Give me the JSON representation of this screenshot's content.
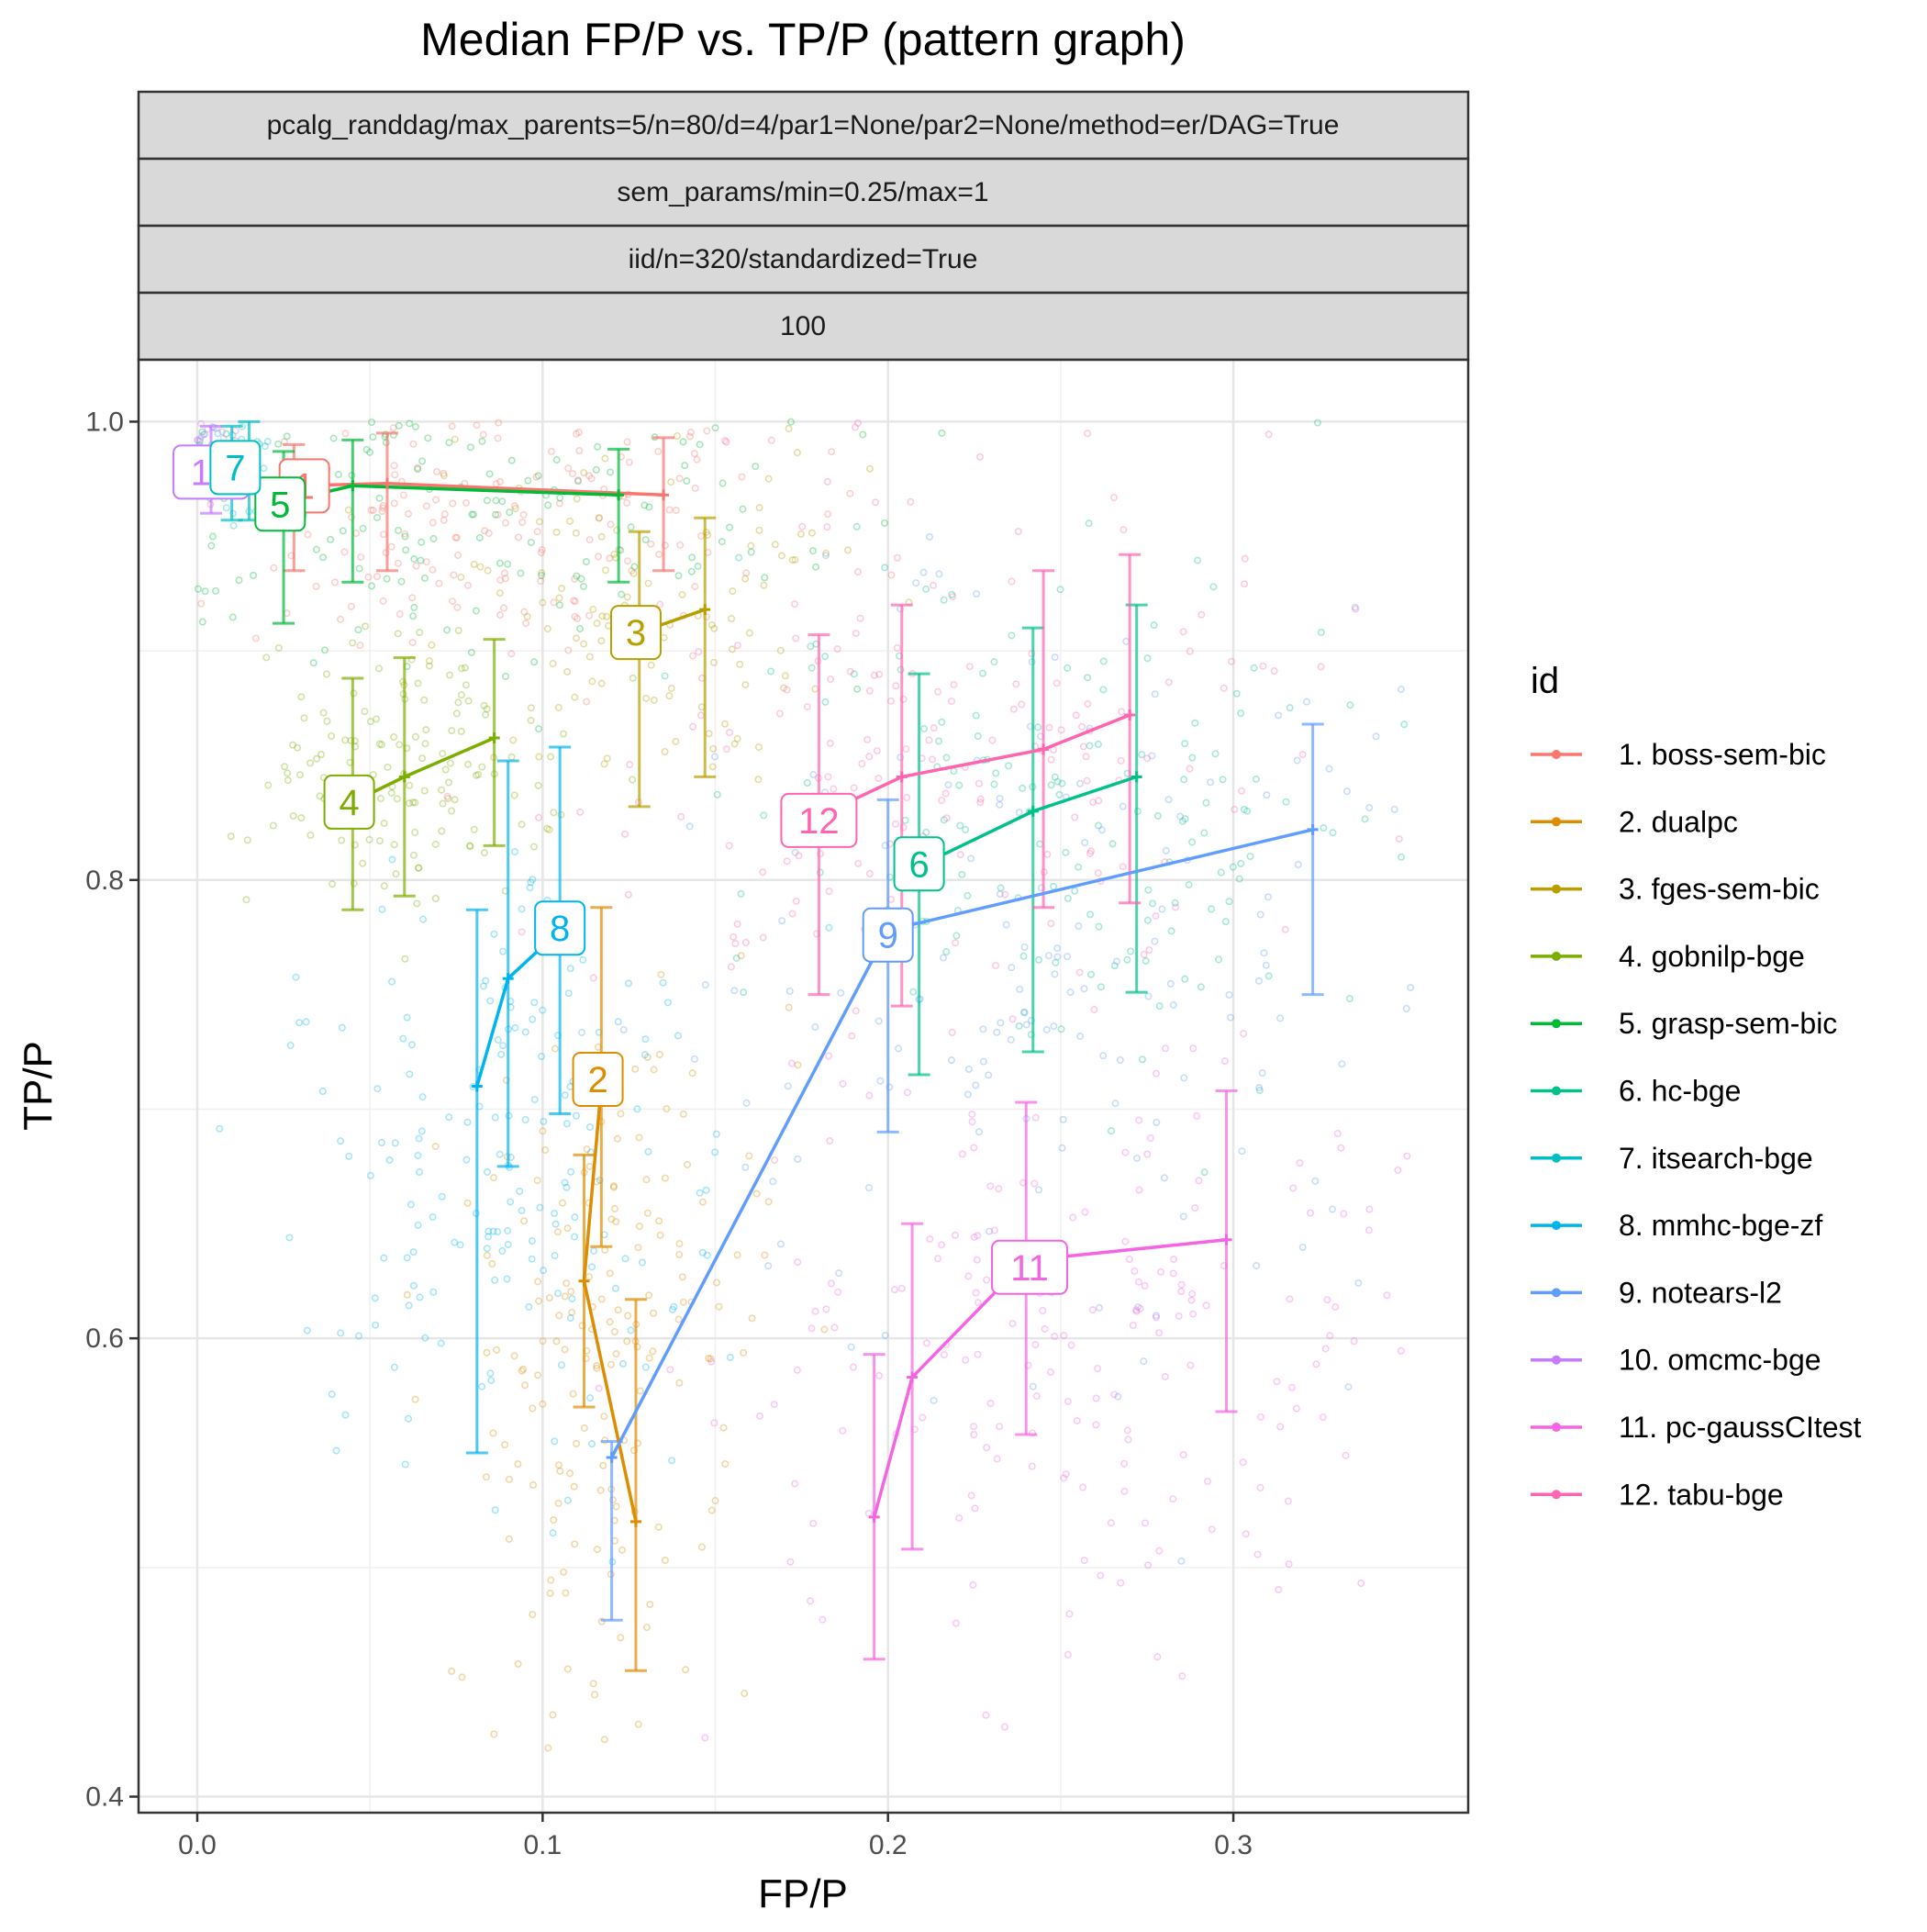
{
  "chart_data": {
    "type": "scatter",
    "title": "Median FP/P vs. TP/P (pattern graph)",
    "facet_strips": [
      "pcalg_randdag/max_parents=5/n=80/d=4/par1=None/par2=None/method=er/DAG=True",
      "sem_params/min=0.25/max=1",
      "iid/n=320/standardized=True",
      "100"
    ],
    "xlabel": "FP/P",
    "ylabel": "TP/P",
    "xlim": [
      -0.017,
      0.368
    ],
    "ylim": [
      0.393,
      1.027
    ],
    "x_ticks": [
      0.0,
      0.1,
      0.2,
      0.3
    ],
    "x_tick_labels": [
      "0.0",
      "0.1",
      "0.2",
      "0.3"
    ],
    "y_ticks": [
      0.4,
      0.6,
      0.8,
      1.0
    ],
    "y_tick_labels": [
      "0.4",
      "0.6",
      "0.8",
      "1.0"
    ],
    "grid": true,
    "legend_title": "id",
    "legend_position": "right",
    "series": [
      {
        "name": "1. boss-sem-bic",
        "label": "1",
        "color": "#F8766D",
        "points": [
          [
            0.028,
            0.972
          ],
          [
            0.055,
            0.973
          ],
          [
            0.135,
            0.968
          ]
        ],
        "errorbars": [
          [
            0.028,
            0.935,
            0.99
          ],
          [
            0.055,
            0.935,
            0.995
          ],
          [
            0.135,
            0.935,
            0.993
          ]
        ],
        "label_at": [
          0.031,
          0.972
        ],
        "cloud": {
          "cx": 0.09,
          "cy": 0.955,
          "sx": 0.04,
          "sy": 0.03,
          "n": 160
        }
      },
      {
        "name": "2. dualpc",
        "label": "2",
        "color": "#DE8C00",
        "points": [
          [
            0.117,
            0.71
          ],
          [
            0.112,
            0.625
          ],
          [
            0.127,
            0.52
          ]
        ],
        "errorbars": [
          [
            0.117,
            0.64,
            0.788
          ],
          [
            0.112,
            0.57,
            0.68
          ],
          [
            0.127,
            0.455,
            0.617
          ]
        ],
        "label_at": [
          0.116,
          0.713
        ],
        "cloud": {
          "cx": 0.12,
          "cy": 0.61,
          "sx": 0.022,
          "sy": 0.075,
          "n": 180
        }
      },
      {
        "name": "3. fges-sem-bic",
        "label": "3",
        "color": "#B79F00",
        "points": [
          [
            0.128,
            0.908
          ],
          [
            0.147,
            0.918
          ]
        ],
        "errorbars": [
          [
            0.128,
            0.832,
            0.952
          ],
          [
            0.147,
            0.845,
            0.958
          ]
        ],
        "label_at": [
          0.127,
          0.908
        ],
        "cloud": {
          "cx": 0.13,
          "cy": 0.91,
          "sx": 0.03,
          "sy": 0.035,
          "n": 120
        }
      },
      {
        "name": "4. gobnilp-bge",
        "label": "4",
        "color": "#7CAE00",
        "points": [
          [
            0.045,
            0.834
          ],
          [
            0.06,
            0.845
          ],
          [
            0.086,
            0.862
          ]
        ],
        "errorbars": [
          [
            0.045,
            0.787,
            0.888
          ],
          [
            0.06,
            0.793,
            0.897
          ],
          [
            0.086,
            0.815,
            0.905
          ]
        ],
        "label_at": [
          0.044,
          0.834
        ],
        "cloud": {
          "cx": 0.06,
          "cy": 0.848,
          "sx": 0.022,
          "sy": 0.03,
          "n": 140
        }
      },
      {
        "name": "5. grasp-sem-bic",
        "label": "5",
        "color": "#00BA38",
        "points": [
          [
            0.025,
            0.965
          ],
          [
            0.045,
            0.972
          ],
          [
            0.122,
            0.968
          ]
        ],
        "errorbars": [
          [
            0.025,
            0.912,
            0.987
          ],
          [
            0.045,
            0.93,
            0.992
          ],
          [
            0.122,
            0.93,
            0.988
          ]
        ],
        "label_at": [
          0.024,
          0.964
        ],
        "cloud": {
          "cx": 0.08,
          "cy": 0.955,
          "sx": 0.045,
          "sy": 0.035,
          "n": 140
        }
      },
      {
        "name": "6. hc-bge",
        "label": "6",
        "color": "#00C08B",
        "points": [
          [
            0.209,
            0.806
          ],
          [
            0.242,
            0.83
          ],
          [
            0.272,
            0.845
          ]
        ],
        "errorbars": [
          [
            0.209,
            0.715,
            0.89
          ],
          [
            0.242,
            0.725,
            0.91
          ],
          [
            0.272,
            0.751,
            0.92
          ]
        ],
        "label_at": [
          0.209,
          0.807
        ],
        "cloud": {
          "cx": 0.25,
          "cy": 0.83,
          "sx": 0.045,
          "sy": 0.06,
          "n": 160
        }
      },
      {
        "name": "7. itsearch-bge",
        "label": "7",
        "color": "#00BFC4",
        "points": [
          [
            0.01,
            0.978
          ],
          [
            0.015,
            0.98
          ]
        ],
        "errorbars": [
          [
            0.01,
            0.957,
            0.998
          ],
          [
            0.015,
            0.957,
            1.0
          ]
        ],
        "label_at": [
          0.011,
          0.98
        ],
        "cloud": {
          "cx": 0.01,
          "cy": 0.982,
          "sx": 0.007,
          "sy": 0.012,
          "n": 50
        }
      },
      {
        "name": "8. mmhc-bge-zf",
        "label": "8",
        "color": "#00B4F0",
        "points": [
          [
            0.081,
            0.71
          ],
          [
            0.09,
            0.757
          ],
          [
            0.105,
            0.778
          ]
        ],
        "errorbars": [
          [
            0.081,
            0.55,
            0.787
          ],
          [
            0.09,
            0.675,
            0.852
          ],
          [
            0.105,
            0.698,
            0.858
          ]
        ],
        "label_at": [
          0.105,
          0.779
        ],
        "cloud": {
          "cx": 0.09,
          "cy": 0.68,
          "sx": 0.03,
          "sy": 0.07,
          "n": 180
        }
      },
      {
        "name": "9. notears-l2",
        "label": "9",
        "color": "#619CFF",
        "points": [
          [
            0.12,
            0.548
          ],
          [
            0.2,
            0.778
          ],
          [
            0.323,
            0.822
          ]
        ],
        "errorbars": [
          [
            0.12,
            0.477,
            0.555
          ],
          [
            0.2,
            0.69,
            0.835
          ],
          [
            0.323,
            0.75,
            0.868
          ]
        ],
        "label_at": [
          0.2,
          0.776
        ],
        "cloud": {
          "cx": 0.25,
          "cy": 0.76,
          "sx": 0.06,
          "sy": 0.08,
          "n": 160
        }
      },
      {
        "name": "10. omcmc-bge",
        "label": "10",
        "color": "#C77CFF",
        "points": [
          [
            0.004,
            0.978
          ]
        ],
        "errorbars": [
          [
            0.004,
            0.96,
            0.998
          ]
        ],
        "label_at": [
          0.004,
          0.978
        ],
        "cloud": {
          "cx": 0.005,
          "cy": 0.985,
          "sx": 0.005,
          "sy": 0.01,
          "n": 30
        }
      },
      {
        "name": "11. pc-gaussCItest",
        "label": "11",
        "color": "#F564E3",
        "points": [
          [
            0.196,
            0.522
          ],
          [
            0.207,
            0.583
          ],
          [
            0.24,
            0.634
          ],
          [
            0.298,
            0.643
          ]
        ],
        "errorbars": [
          [
            0.196,
            0.46,
            0.593
          ],
          [
            0.207,
            0.508,
            0.65
          ],
          [
            0.24,
            0.558,
            0.703
          ],
          [
            0.298,
            0.568,
            0.708
          ]
        ],
        "label_at": [
          0.241,
          0.631
        ],
        "cloud": {
          "cx": 0.25,
          "cy": 0.6,
          "sx": 0.05,
          "sy": 0.07,
          "n": 200
        }
      },
      {
        "name": "12. tabu-bge",
        "label": "12",
        "color": "#FF64B0",
        "points": [
          [
            0.18,
            0.828
          ],
          [
            0.204,
            0.845
          ],
          [
            0.245,
            0.857
          ],
          [
            0.27,
            0.872
          ]
        ],
        "errorbars": [
          [
            0.18,
            0.75,
            0.907
          ],
          [
            0.204,
            0.745,
            0.92
          ],
          [
            0.245,
            0.788,
            0.935
          ],
          [
            0.27,
            0.79,
            0.942
          ]
        ],
        "label_at": [
          0.18,
          0.826
        ],
        "cloud": {
          "cx": 0.22,
          "cy": 0.86,
          "sx": 0.06,
          "sy": 0.06,
          "n": 180
        }
      }
    ]
  }
}
